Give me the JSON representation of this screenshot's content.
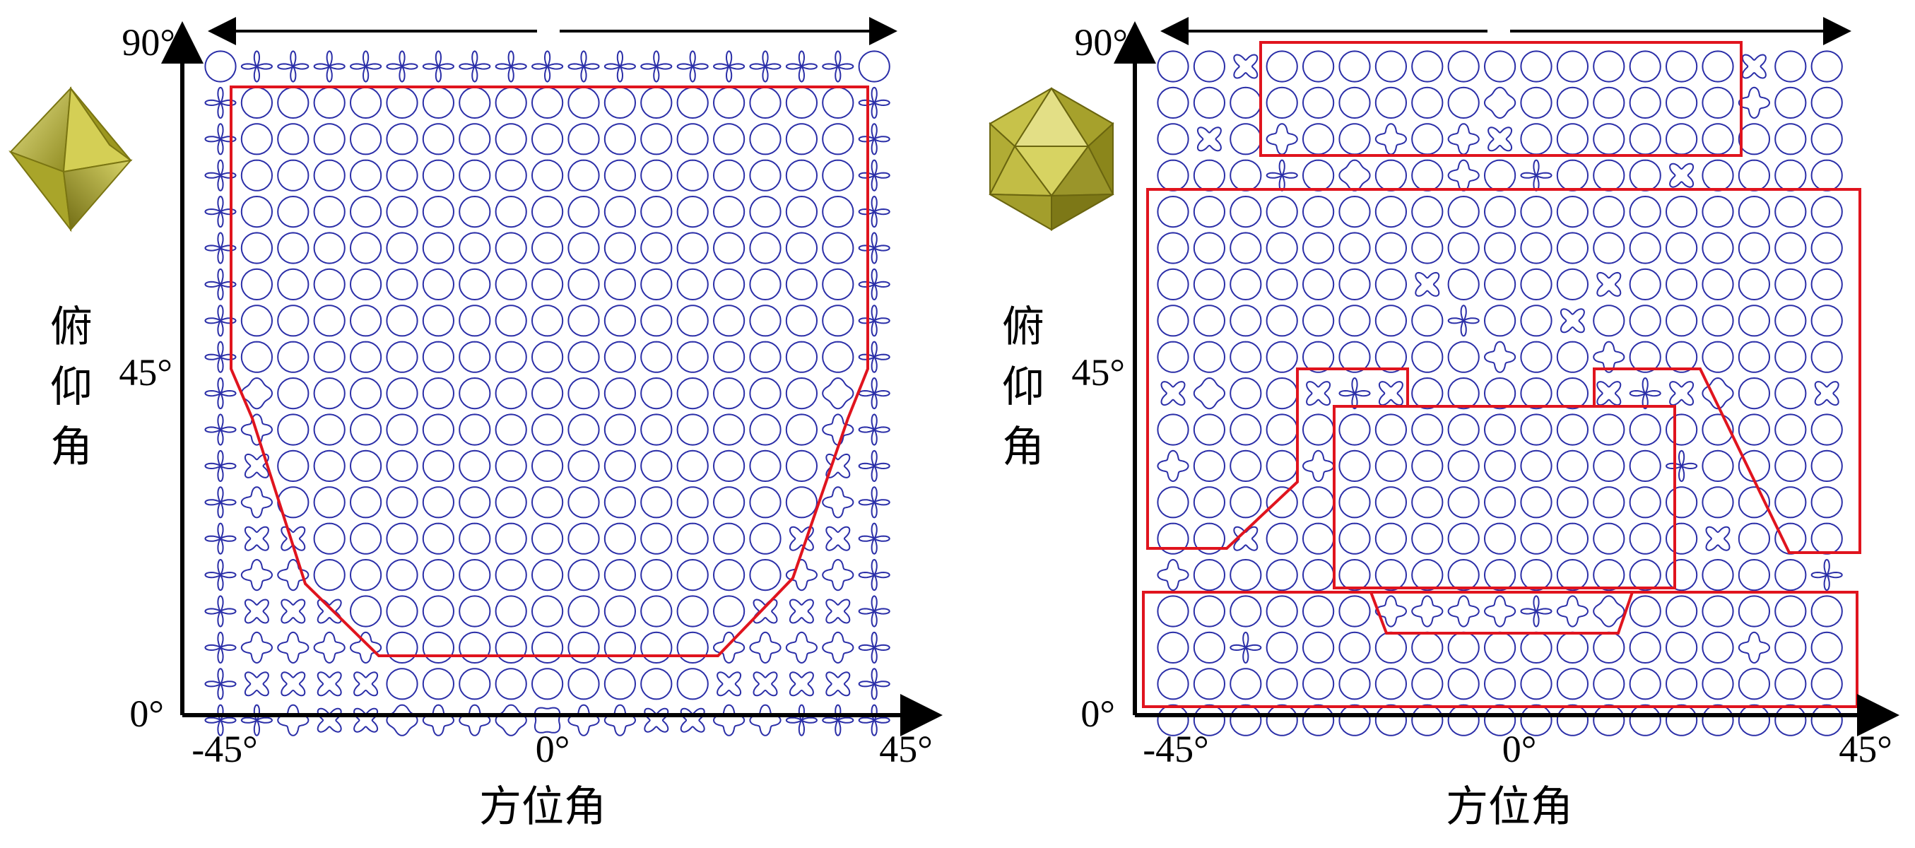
{
  "panels": [
    {
      "id": "left",
      "crystal_icon": "octahedron-icon",
      "x_axis": {
        "title": "方位角",
        "ticks": [
          "-45°",
          "0°",
          "45°"
        ]
      },
      "y_axis": {
        "title": [
          "俯",
          "仰",
          "角"
        ],
        "ticks": [
          "0°",
          "45°",
          "90°"
        ]
      },
      "grid": {
        "cols": 19,
        "rows": 19
      },
      "region_count": 1
    },
    {
      "id": "right",
      "crystal_icon": "icosahedron-icon",
      "x_axis": {
        "title": "方位角",
        "ticks": [
          "-45°",
          "0°",
          "45°"
        ]
      },
      "y_axis": {
        "title": [
          "俯",
          "仰",
          "角"
        ],
        "ticks": [
          "0°",
          "45°",
          "90°"
        ]
      },
      "grid": {
        "cols": 19,
        "rows": 19
      },
      "region_count": 6
    }
  ],
  "colors": {
    "glyph": "#2b2fa8",
    "region": "#e0141e",
    "axis": "#000000",
    "crystal": "#b5b13a"
  }
}
